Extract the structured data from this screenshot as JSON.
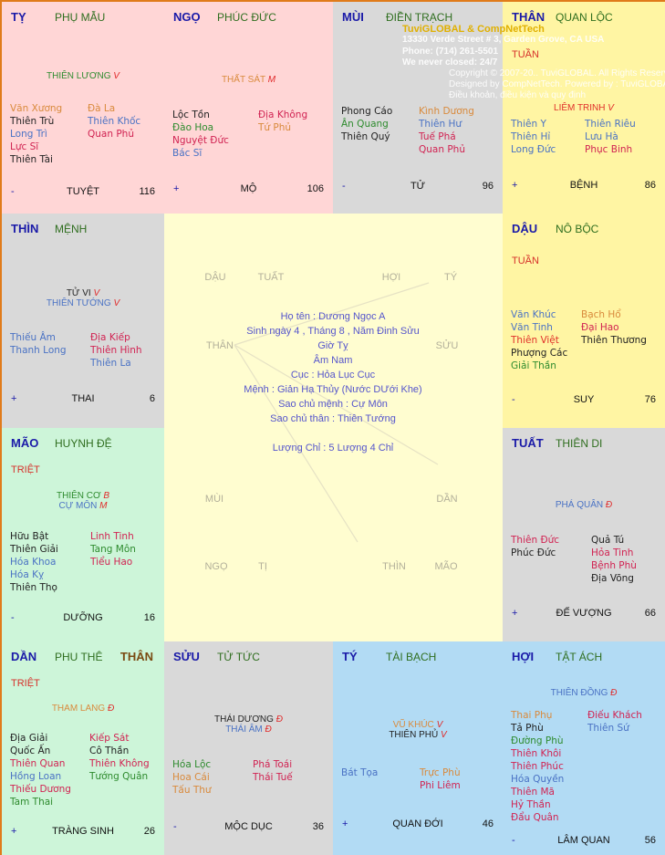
{
  "overlay": {
    "brand": "TuviGLOBAL & CompNetTech",
    "address": "13330 Verde Street # 3, Garden Grove, CA USA",
    "phone": "Phone: (714) 261-5501",
    "hours": "We never closed: 24/7",
    "copyright": "Copyright © 2007-20.. TuviGLOBAL. All Rights Reserved",
    "designed": "Designed by CompNetTech. Powered by : TuviGLOBAL 2.0",
    "terms": "Điều khoản, điều kiện và quy định"
  },
  "colors": {
    "branch": "#1a1aa8",
    "palace": "#2f6e1f",
    "grade": "#e02a2a",
    "info": "#5555cc"
  },
  "cells": [
    {
      "branch": "TỴ",
      "palace": "PHỤ MẪU",
      "bg": "pink",
      "mains": [
        {
          "name": "THIÊN LƯƠNG",
          "grade": "V",
          "color": "g"
        }
      ],
      "left": [
        [
          "Văn Xương",
          "o"
        ],
        [
          "Thiên Trù",
          "k"
        ],
        [
          "Long Trì",
          "b"
        ],
        [
          "Lực Sĩ",
          "r"
        ],
        [
          "Thiên Tài",
          "k"
        ]
      ],
      "right": [
        [
          "Đà La",
          "o"
        ],
        [
          "Thiên Khốc",
          "b"
        ],
        [
          "Quan Phủ",
          "r"
        ]
      ],
      "sign": "-",
      "stage": "TUYỆT",
      "age": "116"
    },
    {
      "branch": "NGỌ",
      "palace": "PHÚC ĐỨC",
      "bg": "pink",
      "mains": [
        {
          "name": "THẤT SÁT",
          "grade": "M",
          "color": "o"
        }
      ],
      "left": [
        [
          "Lộc Tồn",
          "k"
        ],
        [
          "Đào Hoa",
          "g"
        ],
        [
          "Nguyệt Đức",
          "r"
        ],
        [
          "Bác Sĩ",
          "b"
        ]
      ],
      "right": [
        [
          "Địa Không",
          "r"
        ],
        [
          "Tứ Phủ",
          "o"
        ]
      ],
      "sign": "+",
      "stage": "MỘ",
      "age": "106"
    },
    {
      "branch": "MÙI",
      "palace": "ĐIỀN TRẠCH",
      "bg": "gray",
      "mains": [],
      "left": [
        [
          "Phong Cáo",
          "k"
        ],
        [
          "Ân Quang",
          "g"
        ],
        [
          "Thiên Quý",
          "k"
        ]
      ],
      "right": [
        [
          "Kình Dương",
          "o"
        ],
        [
          "Thiên Hư",
          "b"
        ],
        [
          "Tuế Phá",
          "r"
        ],
        [
          "Quan Phủ",
          "r"
        ]
      ],
      "sign": "-",
      "stage": "TỬ",
      "age": "96"
    },
    {
      "branch": "THÂN",
      "palace": "QUAN LỘC",
      "bg": "yellow",
      "marker": "TUẦN",
      "mains": [
        {
          "name": "LIÊM TRINH",
          "grade": "V",
          "color": "red"
        }
      ],
      "left": [
        [
          "Thiên Y",
          "b"
        ],
        [
          "Thiên Hỉ",
          "b"
        ],
        [
          "Long Đức",
          "b"
        ]
      ],
      "right": [
        [
          "Thiên Riêu",
          "b"
        ],
        [
          "Lưu Hà",
          "b"
        ],
        [
          "Phục Binh",
          "r"
        ]
      ],
      "sign": "+",
      "stage": "BỆNH",
      "age": "86"
    },
    {
      "branch": "THÌN",
      "palace": "MỆNH",
      "bg": "gray",
      "mains": [
        {
          "name": "TỬ VI",
          "grade": "V",
          "color": "k"
        },
        {
          "name": "THIÊN TƯỚNG",
          "grade": "V",
          "color": "b"
        }
      ],
      "left": [
        [
          "Thiếu Âm",
          "b"
        ],
        [
          "Thanh Long",
          "b"
        ]
      ],
      "right": [
        [
          "Địa Kiếp",
          "r"
        ],
        [
          "Thiên Hình",
          "r"
        ],
        [
          "Thiên La",
          "b"
        ]
      ],
      "sign": "+",
      "stage": "THAI",
      "age": "6"
    },
    {
      "branch": "DẬU",
      "palace": "NÔ BỘC",
      "bg": "yellow",
      "marker": "TUẦN",
      "mains": [],
      "left": [
        [
          "Văn Khúc",
          "b"
        ],
        [
          "Văn Tinh",
          "b"
        ],
        [
          "Thiên Việt",
          "red"
        ],
        [
          "Phượng Các",
          "k"
        ],
        [
          "Giải Thần",
          "g"
        ]
      ],
      "right": [
        [
          "Bạch Hổ",
          "o"
        ],
        [
          "Đại Hao",
          "r"
        ],
        [
          "Thiên Thương",
          "k"
        ]
      ],
      "sign": "-",
      "stage": "SUY",
      "age": "76"
    },
    {
      "branch": "MÃO",
      "palace": "HUYNH ĐỆ",
      "bg": "green",
      "marker": "TRIỆT",
      "mains": [
        {
          "name": "THIÊN CƠ",
          "grade": "B",
          "color": "g"
        },
        {
          "name": "CỰ MÔN",
          "grade": "M",
          "color": "b"
        }
      ],
      "left": [
        [
          "Hữu Bật",
          "k"
        ],
        [
          "Thiên Giải",
          "k"
        ],
        [
          "Hóa Khoa",
          "b"
        ],
        [
          "Hóa Kỵ",
          "b"
        ],
        [
          "Thiên Thọ",
          "k"
        ]
      ],
      "right": [
        [
          "Linh Tinh",
          "r"
        ],
        [
          "Tang Môn",
          "g"
        ],
        [
          "Tiểu Hao",
          "r"
        ]
      ],
      "sign": "-",
      "stage": "DƯỠNG",
      "age": "16"
    },
    {
      "branch": "TUẤT",
      "palace": "THIÊN DI",
      "bg": "gray",
      "mains": [
        {
          "name": "PHÁ QUÂN",
          "grade": "Đ",
          "color": "b"
        }
      ],
      "left": [
        [
          "Thiên Đức",
          "r"
        ],
        [
          "Phúc Đức",
          "k"
        ]
      ],
      "right": [
        [
          "Quả Tú",
          "k"
        ],
        [
          "Hỏa Tinh",
          "r"
        ],
        [
          "Bệnh Phù",
          "r"
        ],
        [
          "Địa Võng",
          "k"
        ]
      ],
      "sign": "+",
      "stage": "ĐẾ VƯỢNG",
      "age": "66"
    },
    {
      "branch": "DẦN",
      "palace": "PHU THÊ",
      "than": "THÂN",
      "bg": "green",
      "marker": "TRIỆT",
      "mains": [
        {
          "name": "THAM LANG",
          "grade": "Đ",
          "color": "o"
        }
      ],
      "left": [
        [
          "Địa Giải",
          "k"
        ],
        [
          "Quốc Ấn",
          "k"
        ],
        [
          "Thiên Quan",
          "r"
        ],
        [
          "Hồng Loan",
          "b"
        ],
        [
          "Thiếu Dương",
          "r"
        ],
        [
          "Tam Thai",
          "g"
        ]
      ],
      "right": [
        [
          "Kiếp Sát",
          "r"
        ],
        [
          "Cô Thần",
          "k"
        ],
        [
          "Thiên Không",
          "r"
        ],
        [
          "Tướng Quân",
          "g"
        ]
      ],
      "sign": "+",
      "stage": "TRÀNG SINH",
      "age": "26"
    },
    {
      "branch": "SỬU",
      "palace": "TỬ TỨC",
      "bg": "gray",
      "mains": [
        {
          "name": "THÁI DƯƠNG",
          "grade": "Đ",
          "color": "k"
        },
        {
          "name": "THÁI ÂM",
          "grade": "Đ",
          "color": "b"
        }
      ],
      "left": [
        [
          "Hóa Lộc",
          "g"
        ],
        [
          "Hoa Cái",
          "o"
        ],
        [
          "Tấu Thư",
          "o"
        ]
      ],
      "right": [
        [
          "Phá Toái",
          "r"
        ],
        [
          "Thái Tuế",
          "r"
        ]
      ],
      "sign": "-",
      "stage": "MỘC DỤC",
      "age": "36"
    },
    {
      "branch": "TÝ",
      "palace": "TÀI BẠCH",
      "bg": "blue",
      "mains": [
        {
          "name": "VŨ KHÚC",
          "grade": "V",
          "color": "o"
        },
        {
          "name": "THIÊN PHỦ",
          "grade": "V",
          "color": "k"
        }
      ],
      "left": [
        [
          "Bát Tọa",
          "b"
        ]
      ],
      "right": [
        [
          "Trực Phù",
          "o"
        ],
        [
          "Phi Liêm",
          "r"
        ]
      ],
      "sign": "+",
      "stage": "QUAN ĐỚI",
      "age": "46"
    },
    {
      "branch": "HỢI",
      "palace": "TẬT ÁCH",
      "bg": "blue",
      "mains": [
        {
          "name": "THIÊN ĐỒNG",
          "grade": "Đ",
          "color": "b"
        }
      ],
      "left": [
        [
          "Thai Phụ",
          "o"
        ],
        [
          "Tả Phù",
          "k"
        ],
        [
          "Đường Phù",
          "g"
        ],
        [
          "Thiên Khôi",
          "r"
        ],
        [
          "Thiên Phúc",
          "r"
        ],
        [
          "Hóa Quyền",
          "b"
        ],
        [
          "Thiên Mã",
          "r"
        ],
        [
          "Hỷ Thần",
          "r"
        ],
        [
          "Đẩu Quân",
          "r"
        ]
      ],
      "right": [
        [
          "Điếu Khách",
          "r"
        ],
        [
          "Thiên Sứ",
          "b"
        ]
      ],
      "sign": "-",
      "stage": "LÂM QUAN",
      "age": "56"
    }
  ],
  "center": {
    "year_labels": [
      "DẬU",
      "TUẤT",
      "HỢI",
      "TÝ",
      "THÂN",
      "SỬU",
      "MÙI",
      "DẦN",
      "NGỌ",
      "TỊ",
      "THÌN",
      "MÃO"
    ],
    "info": [
      "Họ tên : Dương Ngọc A",
      "Sinh ngày 4 , Tháng 8 , Năm Đinh Sửu",
      "Giờ Tỵ",
      "Âm Nam",
      "Cục : Hỏa Lục Cục",
      "Mệnh : Giản Hạ Thủy (Nước DƯới Khe)",
      "Sao chủ mệnh : Cự Môn",
      "Sao chủ thân : Thiên Tướng",
      "Lượng Chỉ : 5 Lượng 4 Chỉ"
    ]
  }
}
